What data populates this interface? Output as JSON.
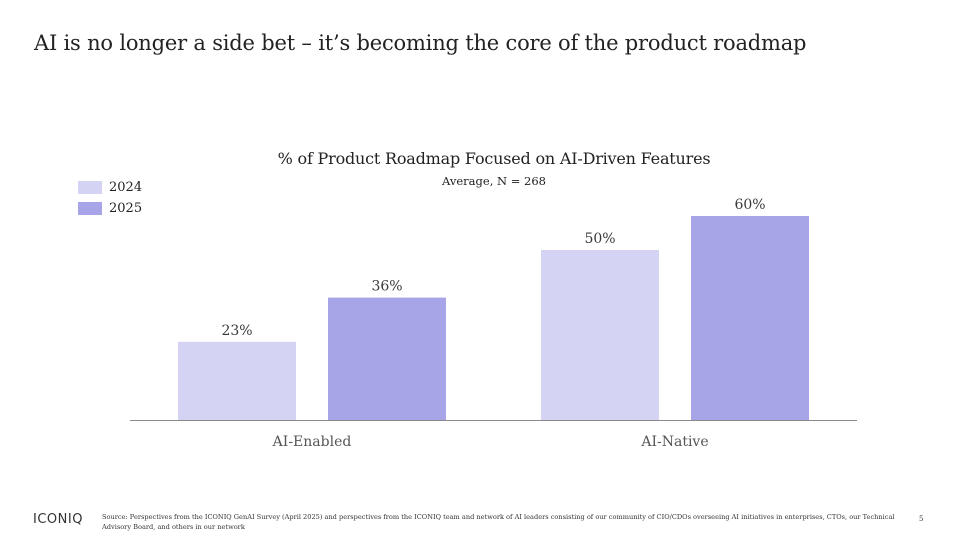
{
  "slide": {
    "title": "AI is no longer a side bet – it’s becoming the core of the product roadmap",
    "page_number": "5"
  },
  "footer": {
    "logo": "ICONIQ",
    "source": "Source: Perspectives from the ICONIQ GenAI Survey (April 2025) and perspectives from the ICONIQ team and network of AI leaders consisting of our community of CIO/CDOs overseeing AI initiatives in enterprises, CTOs, our Technical Advisory Board, and others in our network"
  },
  "colors": {
    "series_2024": "#d5d3f3",
    "series_2025": "#a7a5e7",
    "axis": "#8a8a8a",
    "text": "#2b2b2b"
  },
  "chart_data": {
    "type": "bar",
    "title": "% of Product Roadmap Focused on AI-Driven Features",
    "subtitle": "Average, N = 268",
    "categories": [
      "AI-Enabled",
      "AI-Native"
    ],
    "series": [
      {
        "name": "2024",
        "values": [
          23,
          50
        ],
        "labels": [
          "23%",
          "50%"
        ]
      },
      {
        "name": "2025",
        "values": [
          36,
          60
        ],
        "labels": [
          "36%",
          "60%"
        ]
      }
    ],
    "ylim": [
      0,
      60
    ],
    "grid": false,
    "legend": "top-left"
  }
}
